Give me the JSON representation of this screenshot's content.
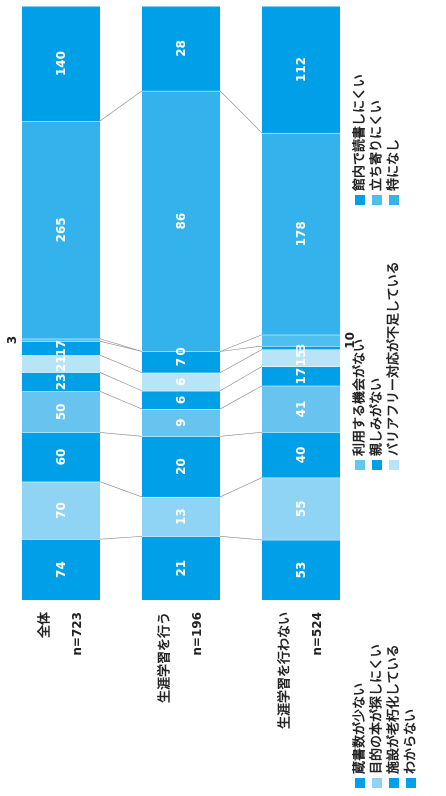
{
  "chart_data": {
    "type": "bar",
    "stacked": "100%",
    "orientation": "horizontal",
    "categories": [
      {
        "label": "全体",
        "n": "n=723"
      },
      {
        "label": "生涯学習を行う",
        "n": "n=196"
      },
      {
        "label": "生涯学習を行わない",
        "n": "n=524"
      }
    ],
    "series": [
      {
        "name": "蔵書数が少ない",
        "color": "#00a0e9",
        "values": [
          74,
          21,
          53
        ]
      },
      {
        "name": "目的の本が探しにくい",
        "color": "#8fd3f5",
        "values": [
          70,
          13,
          55
        ]
      },
      {
        "name": "施設が老朽化している",
        "color": "#00a0e9",
        "values": [
          60,
          20,
          40
        ]
      },
      {
        "name": "利用する機会がない",
        "color": "#66c4ee",
        "values": [
          50,
          9,
          41
        ]
      },
      {
        "name": "親しみがない",
        "color": "#00a0e9",
        "values": [
          23,
          6,
          17
        ]
      },
      {
        "name": "バリアフリー対応が不足している",
        "color": "#b8e4f8",
        "values": [
          21,
          6,
          15
        ]
      },
      {
        "name": "館内で読書しにくい",
        "color": "#00a0e9",
        "values": [
          17,
          7,
          3
        ]
      },
      {
        "name": "立ち寄りにくい",
        "color": "#4fbfef",
        "values": [
          3,
          0,
          10
        ]
      },
      {
        "name": "特になし",
        "color": "#33b2ec",
        "values": [
          265,
          86,
          178
        ]
      },
      {
        "name": "わからない",
        "color": "#00a0e9",
        "values": [
          140,
          28,
          112
        ]
      }
    ],
    "visible_labels": [
      [
        "74",
        "70",
        "60",
        "50",
        "23",
        "21",
        "17",
        "",
        "265",
        "140"
      ],
      [
        "21",
        "13",
        "20",
        "9",
        "6",
        "6",
        "7",
        "0",
        "86",
        "28"
      ],
      [
        "53",
        "55",
        "40",
        "41",
        "17",
        "15",
        "3",
        "",
        "178",
        "112"
      ]
    ],
    "outside_labels": [
      {
        "row": 0,
        "series": 7,
        "text": "3"
      },
      {
        "row": 2,
        "series": 7,
        "text": "10"
      }
    ],
    "legend": [
      {
        "text": "蔵書数が少ない",
        "color": "#00a0e9"
      },
      {
        "text": "目的の本が探しにくい",
        "color": "#8fd3f5"
      },
      {
        "text": "施設が老朽化している",
        "color": "#00a0e9"
      },
      {
        "text": "わからない",
        "color": "#00a0e9"
      },
      {
        "text": "利用する機会がない",
        "color": "#66c4ee"
      },
      {
        "text": "親しみがない",
        "color": "#00a0e9"
      },
      {
        "text": "バリアフリー対応が不足している",
        "color": "#b8e4f8"
      },
      {
        "text": "館内で読書しにくい",
        "color": "#00a0e9"
      },
      {
        "text": "立ち寄りにくい",
        "color": "#4fbfef"
      },
      {
        "text": "特になし",
        "color": "#33b2ec"
      }
    ],
    "legend_placement": "bottom",
    "grid": false,
    "xlim": [
      0,
      100
    ],
    "title": "",
    "xlabel": "",
    "ylabel": ""
  }
}
